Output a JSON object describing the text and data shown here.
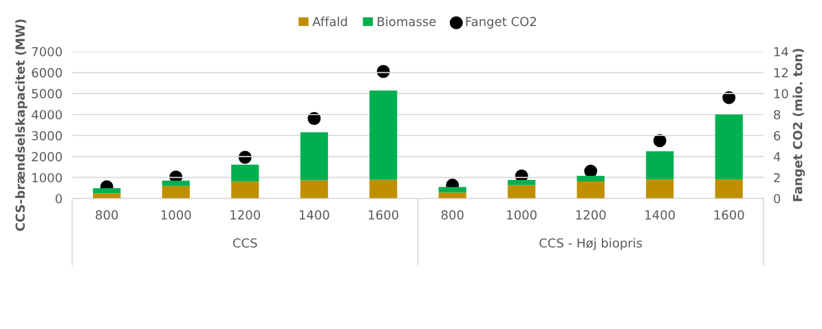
{
  "chart_data": {
    "type": "bar",
    "stacked": true,
    "categories": [
      "800",
      "1000",
      "1200",
      "1400",
      "1600",
      "800",
      "1000",
      "1200",
      "1400",
      "1600"
    ],
    "series": [
      {
        "name": "Affald",
        "color": "#bf8f00",
        "values": [
          250,
          600,
          810,
          870,
          890,
          290,
          640,
          820,
          910,
          910
        ]
      },
      {
        "name": "Biomasse",
        "color": "#00b050",
        "values": [
          240,
          250,
          800,
          2290,
          4250,
          260,
          240,
          260,
          1340,
          3090
        ]
      },
      {
        "name": "Fanget CO2",
        "type": "scatter",
        "axis": "y2",
        "color": "#000000",
        "values": [
          1.12,
          2.05,
          3.93,
          7.62,
          12.1,
          1.27,
          2.14,
          2.61,
          5.51,
          9.61
        ]
      }
    ],
    "ylabel": "CCS-brændselskapacitet (MW)",
    "y2label": "Fanget CO2 (mio. ton)",
    "ylim": [
      0,
      7000
    ],
    "yticks": [
      0,
      1000,
      2000,
      3000,
      4000,
      5000,
      6000,
      7000
    ],
    "y2lim": [
      0,
      14
    ],
    "y2ticks": [
      0,
      2,
      4,
      6,
      8,
      10,
      12,
      14
    ],
    "annotations": [
      "CCS",
      "CCS - Høj biopris"
    ],
    "grid": "y",
    "legend": "top",
    "marker": "circle"
  }
}
